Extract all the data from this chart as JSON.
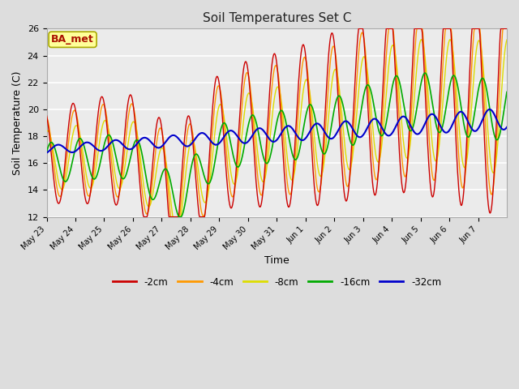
{
  "title": "Soil Temperatures Set C",
  "xlabel": "Time",
  "ylabel": "Soil Temperature (C)",
  "ylim": [
    12,
    26
  ],
  "xlim": [
    0,
    384
  ],
  "background_color": "#dddddd",
  "plot_bg_color": "#ebebeb",
  "annotation_text": "BA_met",
  "annotation_color": "#aa1100",
  "annotation_bg": "#ffff99",
  "annotation_border": "#aaaa00",
  "series_colors": {
    "-2cm": "#cc0000",
    "-4cm": "#ff9900",
    "-8cm": "#dddd00",
    "-16cm": "#00aa00",
    "-32cm": "#0000cc"
  },
  "tick_labels": [
    "May 23",
    "May 24",
    "May 25",
    "May 26",
    "May 27",
    "May 28",
    "May 29",
    "May 30",
    "May 31",
    "Jun 1",
    "Jun 2",
    "Jun 3",
    "Jun 4",
    "Jun 5",
    "Jun 6",
    "Jun 7"
  ],
  "tick_positions": [
    0,
    24,
    48,
    72,
    96,
    120,
    144,
    168,
    192,
    216,
    240,
    264,
    288,
    312,
    336,
    360
  ],
  "yticks": [
    12,
    14,
    16,
    18,
    20,
    22,
    24,
    26
  ]
}
